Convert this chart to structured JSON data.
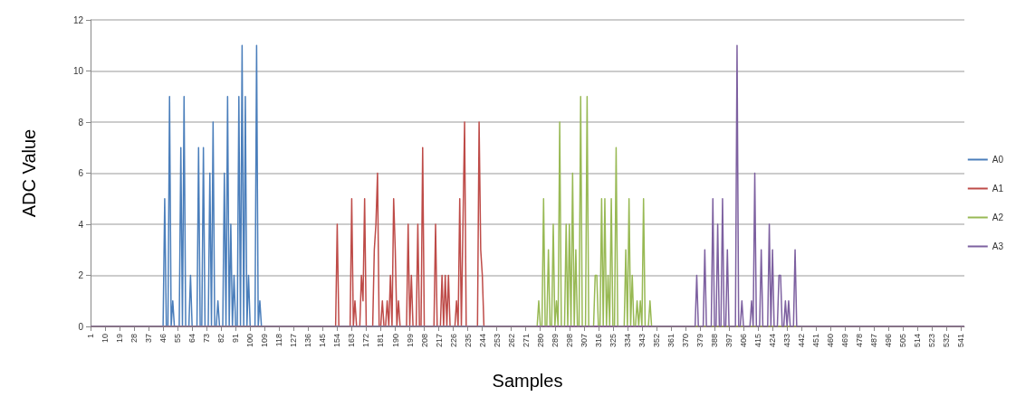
{
  "chart_data": {
    "type": "line",
    "xlabel": "Samples",
    "ylabel": "ADC Value",
    "xlim": [
      1,
      543
    ],
    "xticks": [
      1,
      10,
      19,
      28,
      37,
      46,
      55,
      64,
      73,
      82,
      91,
      100,
      109,
      118,
      127,
      136,
      145,
      154,
      163,
      172,
      181,
      190,
      199,
      208,
      217,
      226,
      235,
      244,
      253,
      262,
      271,
      280,
      289,
      298,
      307,
      316,
      325,
      334,
      343,
      352,
      361,
      370,
      379,
      388,
      397,
      406,
      415,
      424,
      433,
      442,
      451,
      460,
      469,
      478,
      487,
      496,
      505,
      514,
      523,
      532,
      541
    ],
    "ylim": [
      0,
      12
    ],
    "yticks": [
      0,
      2,
      4,
      6,
      8,
      10,
      12
    ],
    "grid": "y",
    "legend": "right",
    "marker": "none",
    "line_style": "solid",
    "series": [
      {
        "name": "A0",
        "color": "#4a7ebb",
        "x": [
          1,
          46,
          47,
          48,
          49,
          50,
          51,
          52,
          53,
          56,
          57,
          58,
          59,
          60,
          62,
          63,
          64,
          67,
          68,
          69,
          70,
          71,
          72,
          74,
          75,
          76,
          77,
          78,
          79,
          80,
          81,
          83,
          84,
          85,
          86,
          87,
          88,
          89,
          90,
          91,
          92,
          93,
          94,
          95,
          96,
          97,
          98,
          99,
          100,
          103,
          104,
          105,
          106,
          107,
          543
        ],
        "values": [
          0,
          0,
          5,
          0,
          0,
          9,
          0,
          1,
          0,
          0,
          7,
          0,
          9,
          0,
          0,
          2,
          0,
          0,
          7,
          0,
          0,
          7,
          0,
          0,
          6,
          0,
          8,
          0,
          0,
          1,
          0,
          0,
          6,
          0,
          9,
          0,
          4,
          0,
          2,
          0,
          0,
          9,
          0,
          11,
          0,
          9,
          0,
          2,
          0,
          0,
          11,
          0,
          1,
          0,
          0
        ]
      },
      {
        "name": "A1",
        "color": "#be4b48",
        "x": [
          1,
          153,
          154,
          155,
          162,
          163,
          164,
          165,
          166,
          168,
          169,
          170,
          171,
          172,
          176,
          177,
          178,
          179,
          180,
          181,
          182,
          183,
          184,
          185,
          186,
          187,
          188,
          189,
          190,
          191,
          192,
          193,
          197,
          198,
          199,
          200,
          201,
          203,
          204,
          205,
          206,
          207,
          208,
          214,
          215,
          216,
          218,
          219,
          220,
          221,
          222,
          223,
          224,
          227,
          228,
          229,
          230,
          231,
          233,
          234,
          241,
          242,
          243,
          244,
          245,
          543
        ],
        "values": [
          0,
          0,
          4,
          0,
          0,
          5,
          0,
          1,
          0,
          0,
          2,
          1,
          5,
          0,
          0,
          3,
          4,
          6,
          0,
          0,
          1,
          0,
          0,
          1,
          0,
          2,
          0,
          5,
          3,
          0,
          1,
          0,
          0,
          4,
          0,
          2,
          0,
          0,
          4,
          0,
          0,
          7,
          0,
          0,
          4,
          0,
          0,
          2,
          0,
          2,
          0,
          2,
          0,
          0,
          1,
          0,
          5,
          0,
          8,
          0,
          0,
          8,
          3,
          2,
          0,
          0
        ]
      },
      {
        "name": "A2",
        "color": "#98b954",
        "x": [
          1,
          278,
          279,
          280,
          281,
          282,
          283,
          284,
          285,
          286,
          287,
          288,
          289,
          290,
          291,
          292,
          293,
          295,
          296,
          297,
          298,
          299,
          300,
          301,
          302,
          303,
          304,
          305,
          306,
          308,
          309,
          310,
          313,
          314,
          315,
          316,
          317,
          318,
          319,
          320,
          321,
          322,
          323,
          324,
          325,
          326,
          327,
          328,
          332,
          333,
          334,
          335,
          336,
          337,
          338,
          339,
          340,
          341,
          342,
          343,
          344,
          345,
          347,
          348,
          349,
          543
        ],
        "values": [
          0,
          0,
          1,
          0,
          0,
          5,
          0,
          0,
          3,
          0,
          0,
          4,
          0,
          1,
          0,
          8,
          0,
          0,
          4,
          0,
          4,
          0,
          6,
          0,
          3,
          0,
          0,
          9,
          0,
          0,
          9,
          0,
          0,
          2,
          2,
          0,
          0,
          5,
          0,
          5,
          0,
          2,
          0,
          5,
          0,
          0,
          7,
          0,
          0,
          3,
          0,
          5,
          0,
          2,
          0,
          0,
          1,
          0,
          1,
          0,
          5,
          0,
          0,
          1,
          0,
          0
        ]
      },
      {
        "name": "A3",
        "color": "#7d60a0",
        "x": [
          1,
          376,
          377,
          378,
          381,
          382,
          383,
          386,
          387,
          388,
          389,
          390,
          391,
          392,
          393,
          394,
          395,
          396,
          397,
          401,
          402,
          403,
          404,
          405,
          406,
          410,
          411,
          412,
          413,
          414,
          416,
          417,
          418,
          421,
          422,
          423,
          424,
          425,
          427,
          428,
          429,
          430,
          431,
          432,
          433,
          434,
          435,
          437,
          438,
          439,
          543
        ],
        "values": [
          0,
          0,
          2,
          0,
          0,
          3,
          0,
          0,
          5,
          0,
          0,
          4,
          0,
          0,
          5,
          0,
          0,
          3,
          0,
          0,
          11,
          0,
          0,
          1,
          0,
          0,
          1,
          0,
          6,
          0,
          0,
          3,
          0,
          0,
          4,
          0,
          3,
          0,
          0,
          2,
          2,
          0,
          0,
          1,
          0,
          1,
          0,
          0,
          3,
          0,
          0
        ]
      }
    ]
  }
}
